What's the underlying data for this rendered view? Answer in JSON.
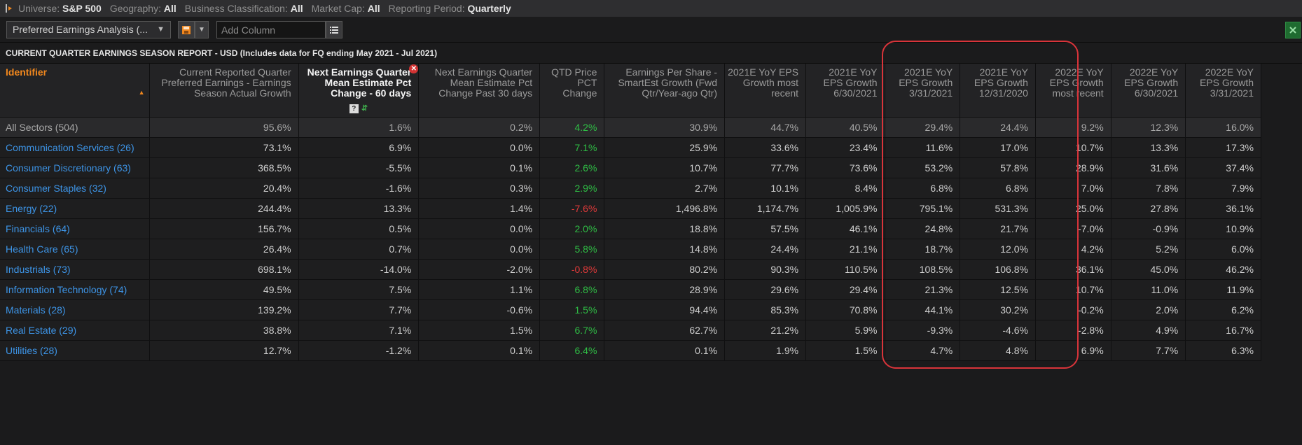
{
  "filters": [
    {
      "label": "Universe:",
      "value": "S&P 500"
    },
    {
      "label": "Geography:",
      "value": "All"
    },
    {
      "label": "Business Classification:",
      "value": "All"
    },
    {
      "label": "Market Cap:",
      "value": "All"
    },
    {
      "label": "Reporting Period:",
      "value": "Quarterly"
    }
  ],
  "toolbar": {
    "view_select": "Preferred Earnings Analysis (...",
    "add_column_placeholder": "Add Column"
  },
  "report_title": "CURRENT QUARTER EARNINGS SEASON REPORT - USD (Includes data for FQ ending May 2021 - Jul 2021)",
  "columns": [
    "Identifier",
    "Current Reported Quarter Preferred Earnings - Earnings Season Actual Growth",
    "Next Earnings Quarter Mean Estimate Pct Change - 60 days",
    "Next Earnings Quarter Mean Estimate Pct Change Past 30 days",
    "QTD Price PCT Change",
    "Earnings Per Share - SmartEst Growth (Fwd Qtr/Year-ago Qtr)",
    "2021E YoY EPS Growth most recent",
    "2021E YoY EPS Growth 6/30/2021",
    "2021E YoY EPS Growth 3/31/2021",
    "2021E YoY EPS Growth 12/31/2020",
    "2022E YoY EPS Growth most recent",
    "2022E YoY EPS Growth 6/30/2021",
    "2022E YoY EPS Growth 3/31/2021"
  ],
  "rows": [
    {
      "name": "All Sectors (504)",
      "values": [
        "95.6%",
        "1.6%",
        "0.2%",
        "4.2%",
        "30.9%",
        "44.7%",
        "40.5%",
        "29.4%",
        "24.4%",
        "9.2%",
        "12.3%",
        "16.0%"
      ]
    },
    {
      "name": "Communication Services (26)",
      "values": [
        "73.1%",
        "6.9%",
        "0.0%",
        "7.1%",
        "25.9%",
        "33.6%",
        "23.4%",
        "11.6%",
        "17.0%",
        "10.7%",
        "13.3%",
        "17.3%"
      ]
    },
    {
      "name": "Consumer Discretionary (63)",
      "values": [
        "368.5%",
        "-5.5%",
        "0.1%",
        "2.6%",
        "10.7%",
        "77.7%",
        "73.6%",
        "53.2%",
        "57.8%",
        "28.9%",
        "31.6%",
        "37.4%"
      ]
    },
    {
      "name": "Consumer Staples (32)",
      "values": [
        "20.4%",
        "-1.6%",
        "0.3%",
        "2.9%",
        "2.7%",
        "10.1%",
        "8.4%",
        "6.8%",
        "6.8%",
        "7.0%",
        "7.8%",
        "7.9%"
      ]
    },
    {
      "name": "Energy (22)",
      "values": [
        "244.4%",
        "13.3%",
        "1.4%",
        "-7.6%",
        "1,496.8%",
        "1,174.7%",
        "1,005.9%",
        "795.1%",
        "531.3%",
        "25.0%",
        "27.8%",
        "36.1%"
      ]
    },
    {
      "name": "Financials (64)",
      "values": [
        "156.7%",
        "0.5%",
        "0.0%",
        "2.0%",
        "18.8%",
        "57.5%",
        "46.1%",
        "24.8%",
        "21.7%",
        "-7.0%",
        "-0.9%",
        "10.9%"
      ]
    },
    {
      "name": "Health Care (65)",
      "values": [
        "26.4%",
        "0.7%",
        "0.0%",
        "5.8%",
        "14.8%",
        "24.4%",
        "21.1%",
        "18.7%",
        "12.0%",
        "4.2%",
        "5.2%",
        "6.0%"
      ]
    },
    {
      "name": "Industrials (73)",
      "values": [
        "698.1%",
        "-14.0%",
        "-2.0%",
        "-0.8%",
        "80.2%",
        "90.3%",
        "110.5%",
        "108.5%",
        "106.8%",
        "36.1%",
        "45.0%",
        "46.2%"
      ]
    },
    {
      "name": "Information Technology (74)",
      "values": [
        "49.5%",
        "7.5%",
        "1.1%",
        "6.8%",
        "28.9%",
        "29.6%",
        "29.4%",
        "21.3%",
        "12.5%",
        "10.7%",
        "11.0%",
        "11.9%"
      ]
    },
    {
      "name": "Materials (28)",
      "values": [
        "139.2%",
        "7.7%",
        "-0.6%",
        "1.5%",
        "94.4%",
        "85.3%",
        "70.8%",
        "44.1%",
        "30.2%",
        "-0.2%",
        "2.0%",
        "6.2%"
      ]
    },
    {
      "name": "Real Estate (29)",
      "values": [
        "38.8%",
        "7.1%",
        "1.5%",
        "6.7%",
        "62.7%",
        "21.2%",
        "5.9%",
        "-9.3%",
        "-4.6%",
        "-2.8%",
        "4.9%",
        "16.7%"
      ]
    },
    {
      "name": "Utilities (28)",
      "values": [
        "12.7%",
        "-1.2%",
        "0.1%",
        "6.4%",
        "0.1%",
        "1.9%",
        "1.5%",
        "4.7%",
        "4.8%",
        "6.9%",
        "7.7%",
        "6.3%"
      ]
    }
  ],
  "colors": {
    "positive": "#2fbe45",
    "negative": "#e03a3a",
    "link": "#3d94e6",
    "accent": "#f0871e",
    "highlight": "#d9343a"
  }
}
